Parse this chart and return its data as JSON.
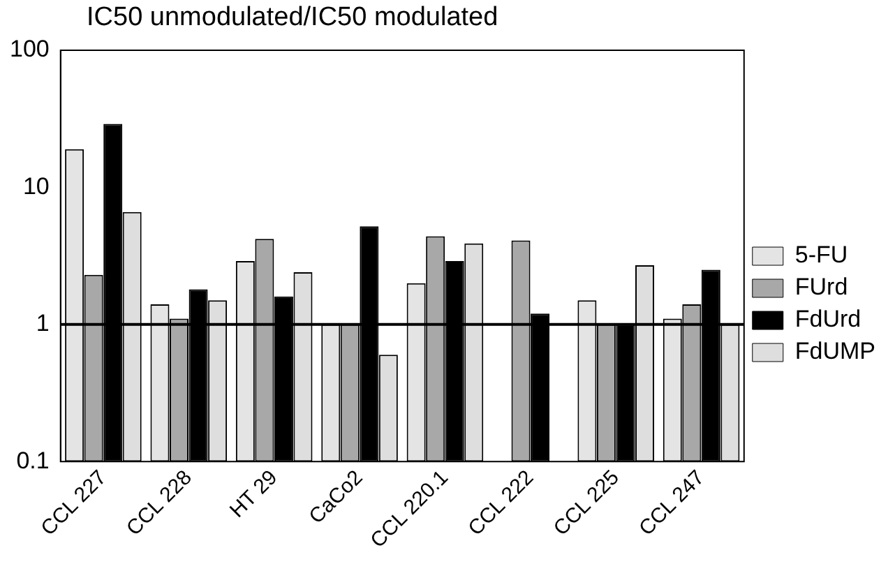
{
  "chart_data": {
    "type": "bar",
    "title": "IC50 unmodulated/IC50 modulated",
    "categories": [
      "CCL 227",
      "CCL 228",
      "HT 29",
      "CaCo2",
      "CCL 220.1",
      "CCL 222",
      "CCL 225",
      "CCL 247"
    ],
    "series": [
      {
        "name": "5-FU",
        "color": "#e4e4e4",
        "values": [
          19,
          1.4,
          2.9,
          1,
          2.0,
          null,
          1.5,
          1.1
        ]
      },
      {
        "name": "FUrd",
        "color": "#a8a8a8",
        "values": [
          2.3,
          1.1,
          4.2,
          1,
          4.4,
          4.1,
          1,
          1.4
        ]
      },
      {
        "name": "FdUrd",
        "color": "#000000",
        "values": [
          29,
          1.8,
          1.6,
          5.2,
          2.9,
          1.2,
          1,
          2.5
        ]
      },
      {
        "name": "FdUMP",
        "color": "#dedede",
        "values": [
          6.6,
          1.5,
          2.4,
          0.6,
          3.9,
          null,
          2.7,
          1
        ]
      }
    ],
    "log": "y",
    "ylim": [
      0.1,
      100
    ],
    "yticks": [
      0.1,
      1,
      10,
      100
    ],
    "ref_lines": [
      {
        "axis": "y",
        "value": 1,
        "color": "#000000"
      }
    ],
    "grid": false,
    "legend": "right"
  }
}
